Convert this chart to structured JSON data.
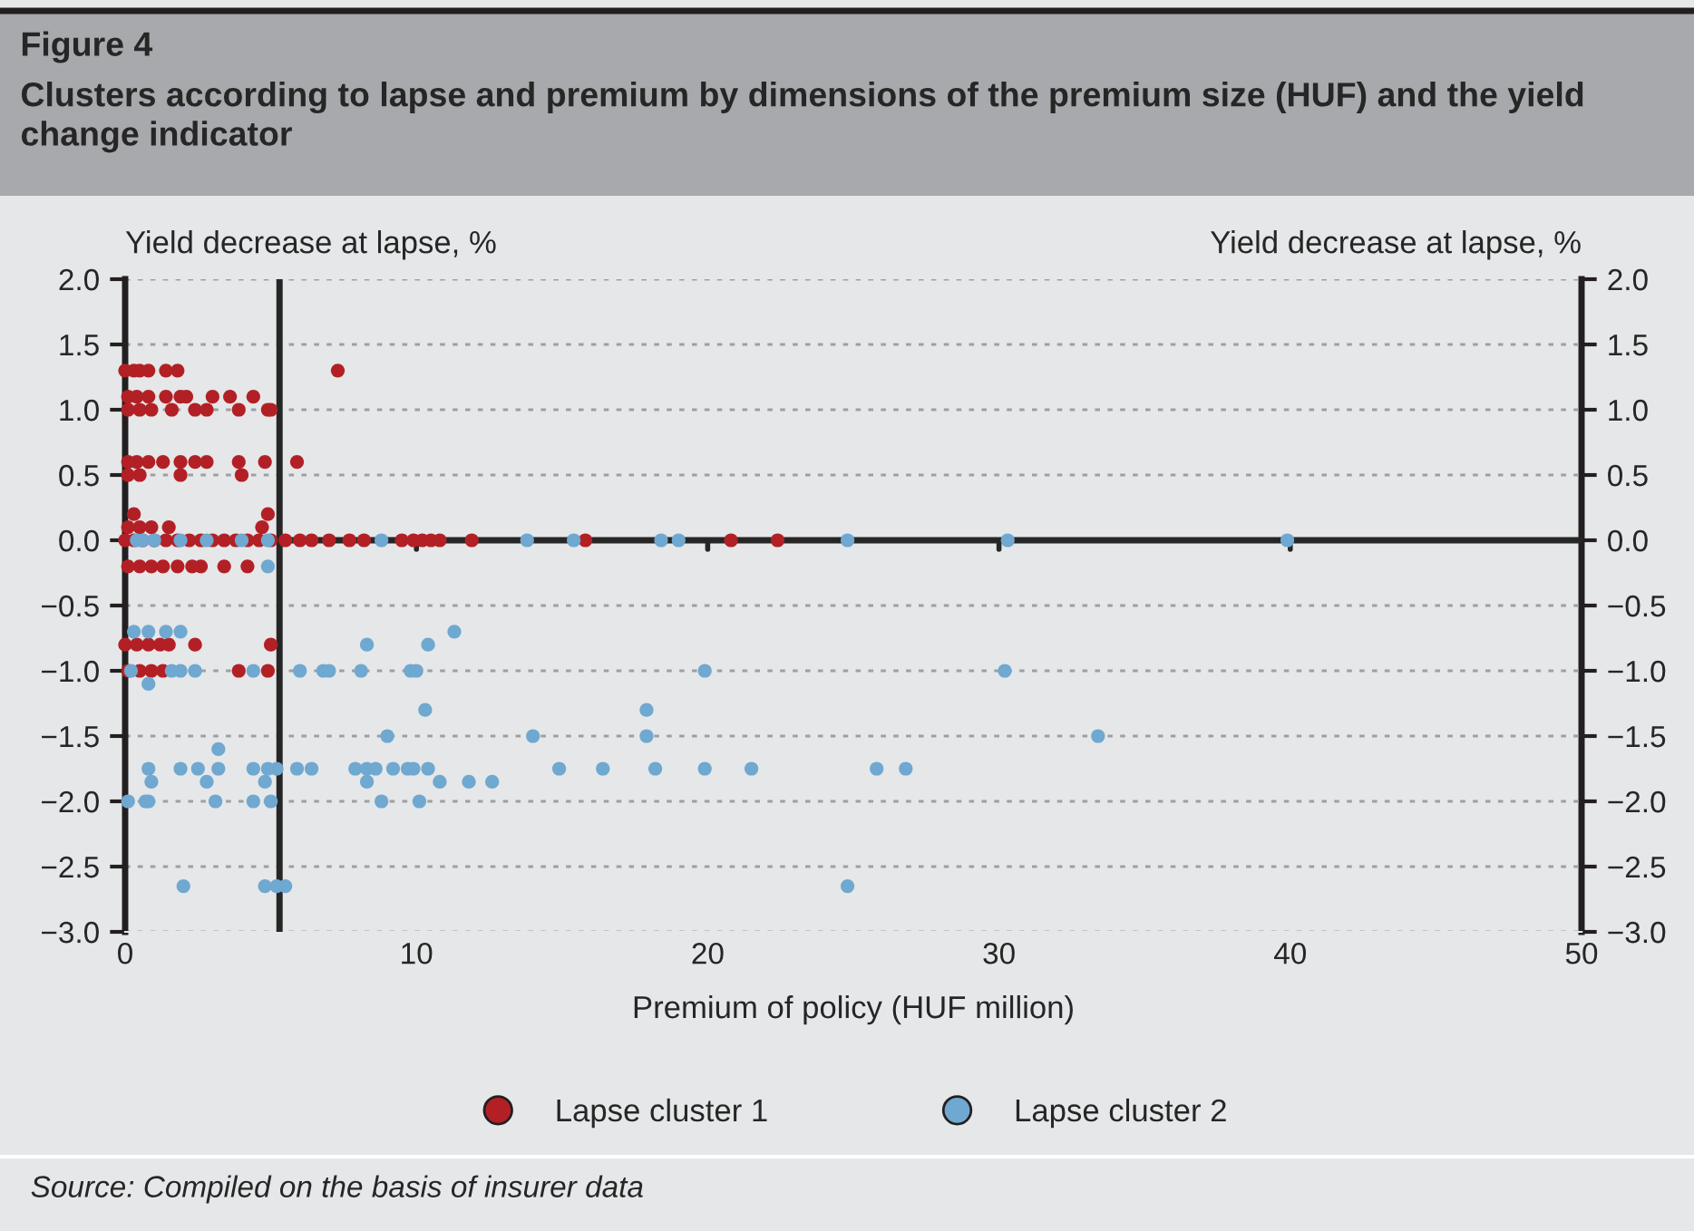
{
  "chart_data": {
    "type": "scatter",
    "title": "Figure 4",
    "subtitle": "Clusters according to lapse and premium by dimensions of the premium size (HUF) and the yield change indicator",
    "xlabel": "Premium of policy (HUF million)",
    "ylabel": "Yield decrease at lapse, %",
    "y2label": "Yield decrease at lapse, %",
    "annotations": [
      "Source: Compiled on the basis of insurer data"
    ],
    "xlim": [
      0,
      50
    ],
    "xticks": [
      0,
      10,
      20,
      30,
      40,
      50
    ],
    "ylim": [
      -3,
      2
    ],
    "yticks": [
      {
        "value": -3,
        "label": "−3.0"
      },
      {
        "value": -2.5,
        "label": "−2.5"
      },
      {
        "value": -2,
        "label": "−2.0"
      },
      {
        "value": -1.5,
        "label": "−1.5"
      },
      {
        "value": -1,
        "label": "−1.0"
      },
      {
        "value": -0.5,
        "label": "−0.5"
      },
      {
        "value": 0,
        "label": "0.0"
      },
      {
        "value": 0.5,
        "label": "0.5"
      },
      {
        "value": 1,
        "label": "1.0"
      },
      {
        "value": 1.5,
        "label": "1.5"
      },
      {
        "value": 2,
        "label": "2.0"
      }
    ],
    "y2lim": [
      -3,
      2
    ],
    "y2ticks": [
      {
        "value": -3,
        "label": "−3.0"
      },
      {
        "value": -2.5,
        "label": "−2.5"
      },
      {
        "value": -2,
        "label": "−2.0"
      },
      {
        "value": -1.5,
        "label": "−1.5"
      },
      {
        "value": -1,
        "label": "−1.0"
      },
      {
        "value": -0.5,
        "label": "−0.5"
      },
      {
        "value": 0,
        "label": "0.0"
      },
      {
        "value": 0.5,
        "label": "0.5"
      },
      {
        "value": 1,
        "label": "1.0"
      },
      {
        "value": 1.5,
        "label": "1.5"
      },
      {
        "value": 2,
        "label": "2.0"
      }
    ],
    "ref_lines": [
      {
        "axis": "y",
        "value": 0,
        "color": "#262626"
      },
      {
        "axis": "x",
        "value": 5.3,
        "color": "#262626"
      }
    ],
    "grid": "y",
    "legend": "bottom",
    "marker": "circle",
    "series": [
      {
        "name": "Lapse cluster 1",
        "color": "#b22025",
        "x": [
          0,
          0.3,
          0.5,
          0.8,
          1.4,
          1.8,
          7.3,
          0.1,
          0.4,
          0.8,
          1.4,
          1.9,
          2.1,
          3.0,
          3.6,
          4.4,
          0.1,
          0.5,
          0.9,
          1.6,
          2.4,
          2.8,
          3.9,
          4.9,
          5.0,
          0.1,
          0.4,
          0.8,
          1.3,
          1.9,
          2.4,
          2.8,
          3.9,
          4.8,
          5.9,
          0.1,
          0.5,
          1.9,
          4.0,
          0.3,
          4.9,
          0.1,
          0.5,
          0.9,
          1.5,
          4.7,
          0,
          0.3,
          0.6,
          1.0,
          1.4,
          1.8,
          2.2,
          2.6,
          3.0,
          3.4,
          3.8,
          4.2,
          4.6,
          5.0,
          5.5,
          6.0,
          6.4,
          7.0,
          7.7,
          8.2,
          9.5,
          9.9,
          10.2,
          10.5,
          10.8,
          11.9,
          15.8,
          20.8,
          22.4,
          0.1,
          0.5,
          0.9,
          1.3,
          1.8,
          2.3,
          2.6,
          3.4,
          4.2,
          0,
          0.4,
          0.8,
          1.2,
          1.5,
          2.4,
          5.0,
          0.1,
          0.5,
          0.9,
          1.3,
          1.9,
          3.9,
          4.9
        ],
        "values": [
          1.3,
          1.3,
          1.3,
          1.3,
          1.3,
          1.3,
          1.3,
          1.1,
          1.1,
          1.1,
          1.1,
          1.1,
          1.1,
          1.1,
          1.1,
          1.1,
          1.0,
          1.0,
          1.0,
          1.0,
          1.0,
          1.0,
          1.0,
          1.0,
          1.0,
          0.6,
          0.6,
          0.6,
          0.6,
          0.6,
          0.6,
          0.6,
          0.6,
          0.6,
          0.6,
          0.5,
          0.5,
          0.5,
          0.5,
          0.2,
          0.2,
          0.1,
          0.1,
          0.1,
          0.1,
          0.1,
          0,
          0,
          0,
          0,
          0,
          0,
          0,
          0,
          0,
          0,
          0,
          0,
          0,
          0,
          0,
          0,
          0,
          0,
          0,
          0,
          0,
          0,
          0,
          0,
          0,
          0,
          0,
          0,
          0,
          -0.2,
          -0.2,
          -0.2,
          -0.2,
          -0.2,
          -0.2,
          -0.2,
          -0.2,
          -0.2,
          -0.8,
          -0.8,
          -0.8,
          -0.8,
          -0.8,
          -0.8,
          -0.8,
          -1.0,
          -1.0,
          -1.0,
          -1.0,
          null,
          -1.0,
          -1.0
        ]
      },
      {
        "name": "Lapse cluster 2",
        "color": "#6fa8d0",
        "x": [
          0.4,
          0.6,
          1.0,
          1.9,
          2.8,
          4.0,
          4.9,
          8.8,
          13.8,
          15.4,
          18.4,
          19.0,
          24.8,
          30.3,
          39.9,
          4.9,
          0.3,
          0.8,
          1.4,
          1.9,
          11.3,
          8.3,
          10.4,
          0.2,
          1.6,
          1.9,
          2.4,
          4.4,
          6.0,
          6.8,
          7.0,
          8.1,
          9.8,
          10.0,
          19.9,
          30.2,
          0.8,
          10.3,
          17.9,
          3.2,
          9.0,
          14.0,
          17.9,
          33.4,
          0.8,
          1.9,
          2.5,
          3.2,
          4.4,
          4.9,
          5.2,
          5.9,
          6.4,
          7.9,
          8.3,
          8.6,
          9.2,
          9.7,
          9.9,
          10.4,
          14.9,
          16.4,
          18.2,
          19.9,
          21.5,
          25.8,
          26.8,
          0.9,
          2.8,
          4.8,
          8.3,
          10.8,
          11.8,
          12.6,
          0.1,
          0.7,
          0.8,
          3.1,
          4.4,
          5.0,
          8.8,
          10.1,
          2.0,
          4.8,
          5.2,
          5.5,
          24.8
        ],
        "values": [
          0,
          0,
          0,
          0,
          0,
          0,
          0,
          0,
          0,
          0,
          0,
          0,
          0,
          0,
          0,
          -0.2,
          -0.7,
          -0.7,
          -0.7,
          -0.7,
          -0.7,
          -0.8,
          -0.8,
          -1.0,
          -1.0,
          -1.0,
          -1.0,
          -1.0,
          -1.0,
          -1.0,
          -1.0,
          -1.0,
          -1.0,
          -1.0,
          -1.0,
          -1.0,
          -1.1,
          -1.3,
          -1.3,
          -1.6,
          -1.5,
          -1.5,
          -1.5,
          -1.5,
          -1.75,
          -1.75,
          -1.75,
          -1.75,
          -1.75,
          -1.75,
          -1.75,
          -1.75,
          -1.75,
          -1.75,
          -1.75,
          -1.75,
          -1.75,
          -1.75,
          -1.75,
          -1.75,
          -1.75,
          -1.75,
          -1.75,
          -1.75,
          -1.75,
          -1.75,
          -1.75,
          -1.85,
          -1.85,
          -1.85,
          -1.85,
          -1.85,
          -1.85,
          -1.85,
          -2.0,
          -2.0,
          -2.0,
          -2.0,
          -2.0,
          -2.0,
          -2.0,
          -2.0,
          -2.65,
          -2.65,
          -2.65,
          -2.65,
          -2.65
        ]
      }
    ]
  }
}
